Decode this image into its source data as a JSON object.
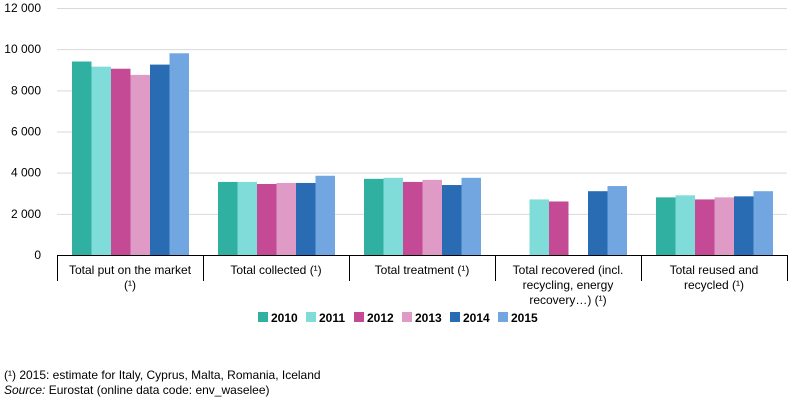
{
  "chart_data": {
    "type": "bar",
    "categories": [
      [
        "Total put on the market",
        "(¹)"
      ],
      [
        "Total collected (¹)"
      ],
      [
        "Total treatment (¹)"
      ],
      [
        "Total recovered  (incl.",
        "recycling, energy",
        "recovery…)  (¹)"
      ],
      [
        "Total reused and",
        "recycled (¹)"
      ]
    ],
    "series": [
      {
        "name": "2010",
        "color": "#2fb0a0",
        "values": [
          9400,
          3550,
          3700,
          null,
          2800
        ]
      },
      {
        "name": "2011",
        "color": "#80dcd8",
        "values": [
          9150,
          3550,
          3750,
          2700,
          2900
        ]
      },
      {
        "name": "2012",
        "color": "#c44a96",
        "values": [
          9050,
          3450,
          3550,
          2600,
          2700
        ]
      },
      {
        "name": "2013",
        "color": "#e09ac6",
        "values": [
          8750,
          3500,
          3650,
          null,
          2800
        ]
      },
      {
        "name": "2014",
        "color": "#2a6cb3",
        "values": [
          9250,
          3500,
          3400,
          3100,
          2850
        ]
      },
      {
        "name": "2015",
        "color": "#72a6e0",
        "values": [
          9800,
          3850,
          3750,
          3350,
          3100
        ]
      }
    ],
    "yticks": [
      "0",
      "2 000",
      "4 000",
      "6 000",
      "8 000",
      "10 000",
      "12 000"
    ],
    "ytick_values": [
      0,
      2000,
      4000,
      6000,
      8000,
      10000,
      12000
    ],
    "ylim": [
      0,
      12000
    ],
    "grid": true,
    "legend_position": "bottom"
  },
  "footnotes": {
    "note": "(¹) 2015: estimate for Italy, Cyprus, Malta, Romania, Iceland",
    "source_label": "Source:",
    "source_text": " Eurostat (online data code: env_waselee)"
  }
}
